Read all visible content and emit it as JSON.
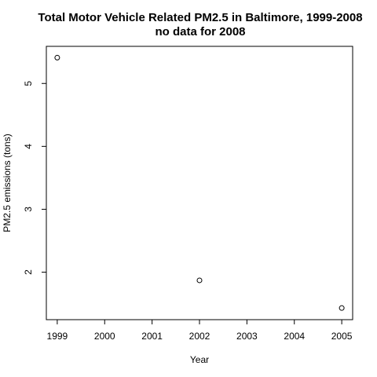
{
  "chart_data": {
    "type": "scatter",
    "title": "Total Motor Vehicle Related PM2.5 in Baltimore, 1999-2008",
    "subtitle": "no data for 2008",
    "xlabel": "Year",
    "ylabel": "PM2.5 emissions (tons)",
    "x_ticks": [
      1999,
      2000,
      2001,
      2002,
      2003,
      2004,
      2005
    ],
    "y_ticks": [
      2,
      3,
      4,
      5
    ],
    "xlim": [
      1998.77,
      2005.23
    ],
    "ylim": [
      1.245,
      5.59
    ],
    "grid": false,
    "points": [
      {
        "x": 1999,
        "y": 5.41
      },
      {
        "x": 2002,
        "y": 1.87
      },
      {
        "x": 2005,
        "y": 1.43
      }
    ]
  }
}
